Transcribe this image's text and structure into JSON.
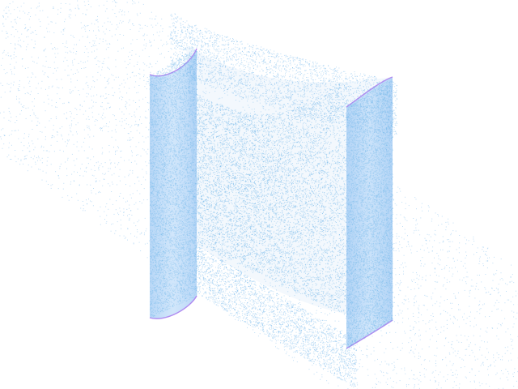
{
  "scene": {
    "background": "#ffffff",
    "colors": {
      "point_fill": "#6fb6ea",
      "panel_fill": "#8fc0f4",
      "panel_core": "#78b4ee",
      "edge": "#b08af0"
    },
    "elements": [
      "point-cloud",
      "left-curved-panel",
      "right-curved-panel",
      "twisted-sheet"
    ]
  }
}
